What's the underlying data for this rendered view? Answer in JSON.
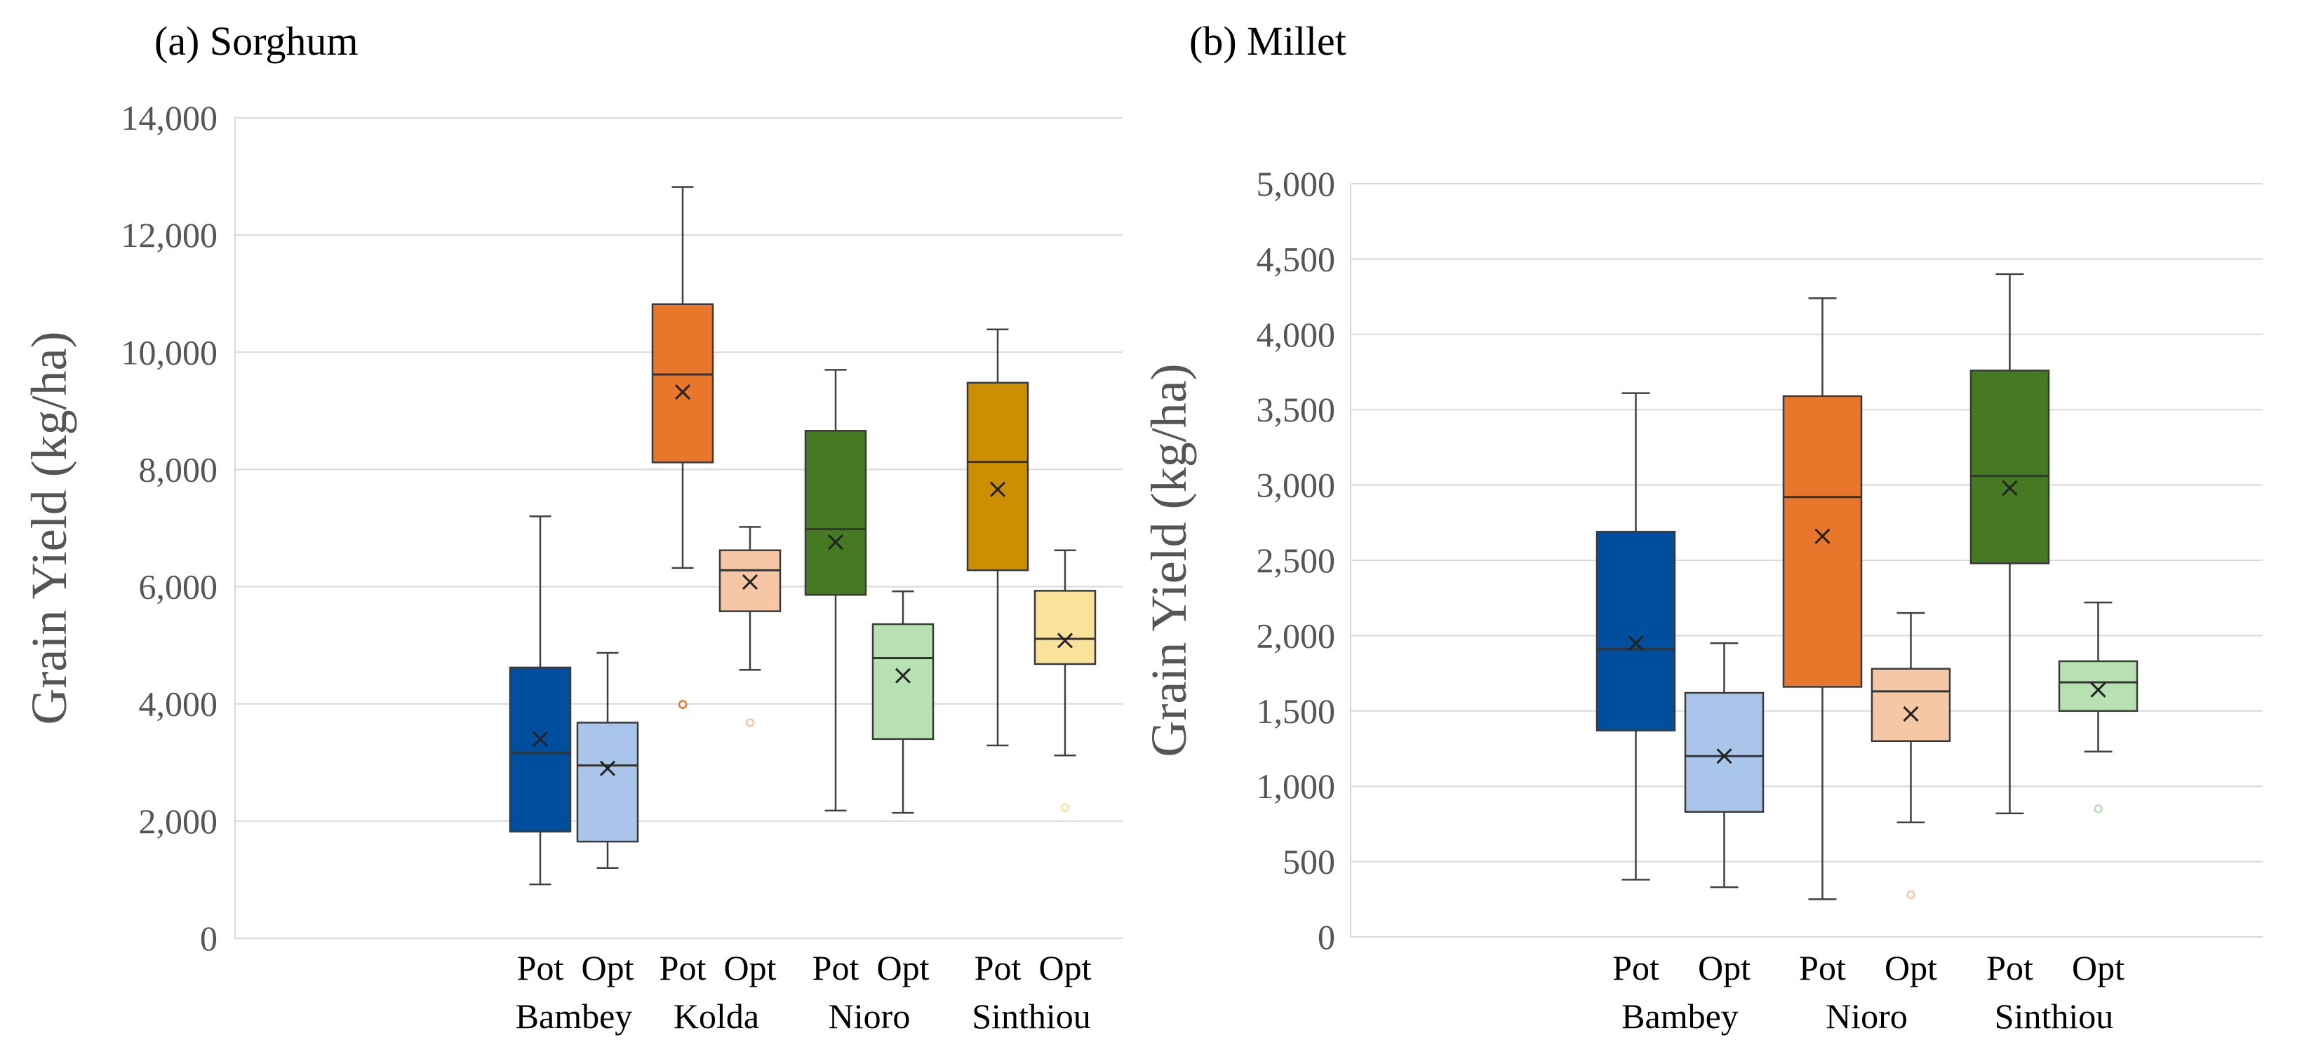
{
  "chart_data": [
    {
      "type": "box",
      "title": "(a) Sorghum",
      "ylabel": "Grain Yield (kg/ha)",
      "ylim": [
        0,
        14000
      ],
      "yticks": [
        0,
        2000,
        4000,
        6000,
        8000,
        10000,
        12000,
        14000
      ],
      "ytick_labels": [
        "0",
        "2,000",
        "4,000",
        "6,000",
        "8,000",
        "10,000",
        "12,000",
        "14,000"
      ],
      "grid": true,
      "sites": [
        {
          "name": "Bambey",
          "series": [
            {
              "label": "Pot",
              "color": "#004f9e",
              "min": 920,
              "q1": 1820,
              "median": 3160,
              "q3": 4620,
              "max": 7200,
              "mean": 3400,
              "outliers": []
            },
            {
              "label": "Opt",
              "color": "#a9c6ea",
              "min": 1200,
              "q1": 1650,
              "median": 2950,
              "q3": 3680,
              "max": 4870,
              "mean": 2900,
              "outliers": []
            }
          ]
        },
        {
          "name": "Kolda",
          "series": [
            {
              "label": "Pot",
              "color": "#e8762b",
              "min": 6320,
              "q1": 8120,
              "median": 9620,
              "q3": 10820,
              "max": 12820,
              "mean": 9320,
              "outliers": [
                3990
              ]
            },
            {
              "label": "Opt",
              "color": "#f5c7a4",
              "min": 4580,
              "q1": 5580,
              "median": 6280,
              "q3": 6620,
              "max": 7020,
              "mean": 6080,
              "outliers": [
                3680
              ]
            }
          ]
        },
        {
          "name": "Nioro",
          "series": [
            {
              "label": "Pot",
              "color": "#457a22",
              "min": 2180,
              "q1": 5860,
              "median": 6980,
              "q3": 8660,
              "max": 9700,
              "mean": 6760,
              "outliers": []
            },
            {
              "label": "Opt",
              "color": "#b7e0b3",
              "min": 2140,
              "q1": 3400,
              "median": 4780,
              "q3": 5360,
              "max": 5920,
              "mean": 4480,
              "outliers": []
            }
          ]
        },
        {
          "name": "Sinthiou",
          "series": [
            {
              "label": "Pot",
              "color": "#cc8f00",
              "min": 3290,
              "q1": 6280,
              "median": 8130,
              "q3": 9480,
              "max": 10390,
              "mean": 7660,
              "outliers": []
            },
            {
              "label": "Opt",
              "color": "#fbe29a",
              "min": 3120,
              "q1": 4680,
              "median": 5110,
              "q3": 5930,
              "max": 6620,
              "mean": 5080,
              "outliers": [
                2230
              ]
            }
          ]
        }
      ]
    },
    {
      "type": "box",
      "title": "(b) Millet",
      "ylabel": "Grain Yield (kg/ha)",
      "ylim": [
        0,
        5000
      ],
      "yticks": [
        0,
        500,
        1000,
        1500,
        2000,
        2500,
        3000,
        3500,
        4000,
        4500,
        5000
      ],
      "ytick_labels": [
        "0",
        "500",
        "1,000",
        "1,500",
        "2,000",
        "2,500",
        "3,000",
        "3,500",
        "4,000",
        "4,500",
        "5,000"
      ],
      "grid": true,
      "sites": [
        {
          "name": "Bambey",
          "series": [
            {
              "label": "Pot",
              "color": "#004f9e",
              "min": 380,
              "q1": 1370,
              "median": 1910,
              "q3": 2690,
              "max": 3610,
              "mean": 1950,
              "outliers": []
            },
            {
              "label": "Opt",
              "color": "#a9c6ea",
              "min": 330,
              "q1": 830,
              "median": 1200,
              "q3": 1620,
              "max": 1950,
              "mean": 1200,
              "outliers": []
            }
          ]
        },
        {
          "name": "Nioro",
          "series": [
            {
              "label": "Pot",
              "color": "#e8762b",
              "min": 250,
              "q1": 1660,
              "median": 2920,
              "q3": 3590,
              "max": 4240,
              "mean": 2660,
              "outliers": []
            },
            {
              "label": "Opt",
              "color": "#f5c7a4",
              "min": 760,
              "q1": 1300,
              "median": 1630,
              "q3": 1780,
              "max": 2150,
              "mean": 1480,
              "outliers": [
                280
              ]
            }
          ]
        },
        {
          "name": "Sinthiou",
          "series": [
            {
              "label": "Pot",
              "color": "#457a22",
              "min": 820,
              "q1": 2480,
              "median": 3060,
              "q3": 3760,
              "max": 4400,
              "mean": 2980,
              "outliers": []
            },
            {
              "label": "Opt",
              "color": "#b7e0b3",
              "min": 1230,
              "q1": 1500,
              "median": 1690,
              "q3": 1830,
              "max": 2220,
              "mean": 1640,
              "outliers": [
                850
              ]
            }
          ]
        }
      ]
    }
  ]
}
